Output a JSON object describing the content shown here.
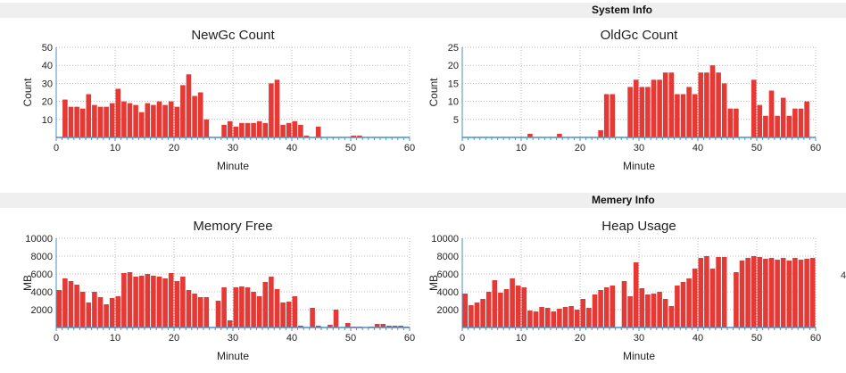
{
  "sections": {
    "system": "System Info",
    "memory": "Memery Info"
  },
  "edge_mark": "4",
  "chart_data": [
    {
      "id": "newgc",
      "type": "bar",
      "title": "NewGc Count",
      "xlabel": "Minute",
      "ylabel": "Count",
      "xlim": [
        0,
        60
      ],
      "ylim": [
        0,
        50
      ],
      "xticks": [
        0,
        10,
        20,
        30,
        40,
        50,
        60
      ],
      "yticks": [
        10,
        20,
        30,
        40,
        50
      ],
      "grid": true,
      "color": "#e53935",
      "x": [
        0,
        1,
        2,
        3,
        4,
        5,
        6,
        7,
        8,
        9,
        10,
        11,
        12,
        13,
        14,
        15,
        16,
        17,
        18,
        19,
        20,
        21,
        22,
        23,
        24,
        25,
        26,
        27,
        28,
        29,
        30,
        31,
        32,
        33,
        34,
        35,
        36,
        37,
        38,
        39,
        40,
        41,
        42,
        43,
        44,
        45,
        46,
        47,
        48,
        49,
        50,
        51,
        52,
        53,
        54,
        55,
        56,
        57,
        58,
        59
      ],
      "values": [
        0,
        21,
        17,
        17,
        16,
        24,
        18,
        17,
        17,
        19,
        27,
        20,
        19,
        18,
        14,
        19,
        18,
        20,
        18,
        20,
        17,
        29,
        35,
        23,
        25,
        10,
        0,
        0,
        7,
        9,
        6,
        8,
        8,
        8,
        9,
        8,
        30,
        32,
        7,
        8,
        9,
        7,
        1,
        0,
        6,
        0,
        0,
        0,
        0,
        0,
        1,
        1,
        0,
        0,
        0,
        0,
        0,
        0,
        0,
        0
      ]
    },
    {
      "id": "oldgc",
      "type": "bar",
      "title": "OldGc Count",
      "xlabel": "Minute",
      "ylabel": "Count",
      "xlim": [
        0,
        60
      ],
      "ylim": [
        0,
        25
      ],
      "xticks": [
        0,
        10,
        20,
        30,
        40,
        50,
        60
      ],
      "yticks": [
        5,
        10,
        15,
        20,
        25
      ],
      "grid": true,
      "color": "#e53935",
      "x": [
        0,
        1,
        2,
        3,
        4,
        5,
        6,
        7,
        8,
        9,
        10,
        11,
        12,
        13,
        14,
        15,
        16,
        17,
        18,
        19,
        20,
        21,
        22,
        23,
        24,
        25,
        26,
        27,
        28,
        29,
        30,
        31,
        32,
        33,
        34,
        35,
        36,
        37,
        38,
        39,
        40,
        41,
        42,
        43,
        44,
        45,
        46,
        47,
        48,
        49,
        50,
        51,
        52,
        53,
        54,
        55,
        56,
        57,
        58,
        59
      ],
      "values": [
        0,
        0,
        0,
        0,
        0,
        0,
        0,
        0,
        0,
        0,
        0,
        1,
        0,
        0,
        0,
        0,
        1,
        0,
        0,
        0,
        0,
        0,
        0,
        2,
        12,
        12,
        0,
        0,
        14,
        16,
        14,
        14,
        16,
        16,
        18,
        18,
        12,
        12,
        14,
        12,
        18,
        18,
        20,
        18,
        15,
        8,
        8,
        0,
        0,
        16,
        9,
        6,
        13,
        6,
        11,
        6,
        8,
        8,
        10,
        0
      ]
    },
    {
      "id": "memfree",
      "type": "bar",
      "title": "Memory Free",
      "xlabel": "Minute",
      "ylabel": "MB",
      "xlim": [
        0,
        60
      ],
      "ylim": [
        0,
        10000
      ],
      "xticks": [
        0,
        10,
        20,
        30,
        40,
        50,
        60
      ],
      "yticks": [
        2000,
        4000,
        6000,
        8000,
        10000
      ],
      "grid": true,
      "color": "#e53935",
      "x": [
        0,
        1,
        2,
        3,
        4,
        5,
        6,
        7,
        8,
        9,
        10,
        11,
        12,
        13,
        14,
        15,
        16,
        17,
        18,
        19,
        20,
        21,
        22,
        23,
        24,
        25,
        26,
        27,
        28,
        29,
        30,
        31,
        32,
        33,
        34,
        35,
        36,
        37,
        38,
        39,
        40,
        41,
        42,
        43,
        44,
        45,
        46,
        47,
        48,
        49,
        50,
        51,
        52,
        53,
        54,
        55,
        56,
        57,
        58,
        59
      ],
      "values": [
        4200,
        5500,
        5200,
        4800,
        4000,
        2800,
        4000,
        3400,
        2600,
        3300,
        3500,
        6100,
        6200,
        5700,
        5800,
        6000,
        5800,
        5700,
        5500,
        6100,
        5200,
        5700,
        4200,
        3800,
        3400,
        3400,
        0,
        3000,
        4500,
        800,
        4500,
        4600,
        4500,
        4000,
        3500,
        5100,
        5700,
        4300,
        2800,
        2900,
        3500,
        200,
        0,
        2200,
        200,
        0,
        300,
        2000,
        0,
        500,
        100,
        100,
        0,
        100,
        400,
        400,
        200,
        200,
        200,
        100
      ]
    },
    {
      "id": "heap",
      "type": "bar",
      "title": "Heap Usage",
      "xlabel": "Minute",
      "ylabel": "MB",
      "xlim": [
        0,
        60
      ],
      "ylim": [
        0,
        10000
      ],
      "xticks": [
        0,
        10,
        20,
        30,
        40,
        50,
        60
      ],
      "yticks": [
        2000,
        4000,
        6000,
        8000,
        10000
      ],
      "grid": true,
      "color": "#e53935",
      "x": [
        0,
        1,
        2,
        3,
        4,
        5,
        6,
        7,
        8,
        9,
        10,
        11,
        12,
        13,
        14,
        15,
        16,
        17,
        18,
        19,
        20,
        21,
        22,
        23,
        24,
        25,
        26,
        27,
        28,
        29,
        30,
        31,
        32,
        33,
        34,
        35,
        36,
        37,
        38,
        39,
        40,
        41,
        42,
        43,
        44,
        45,
        46,
        47,
        48,
        49,
        50,
        51,
        52,
        53,
        54,
        55,
        56,
        57,
        58,
        59
      ],
      "values": [
        3800,
        2500,
        2800,
        3200,
        4000,
        5300,
        3900,
        4300,
        5500,
        4700,
        4500,
        1900,
        1800,
        2300,
        2200,
        1800,
        2100,
        2300,
        2400,
        2000,
        3200,
        2200,
        3700,
        4200,
        4500,
        4700,
        0,
        5200,
        3500,
        7300,
        4400,
        3700,
        3800,
        4000,
        3200,
        2400,
        4700,
        5100,
        5500,
        6600,
        7800,
        8000,
        6600,
        7900,
        7900,
        0,
        6200,
        7500,
        7800,
        8000,
        7900,
        7700,
        7800,
        7600,
        7800,
        7500,
        7800,
        7600,
        7700,
        7800
      ]
    }
  ]
}
